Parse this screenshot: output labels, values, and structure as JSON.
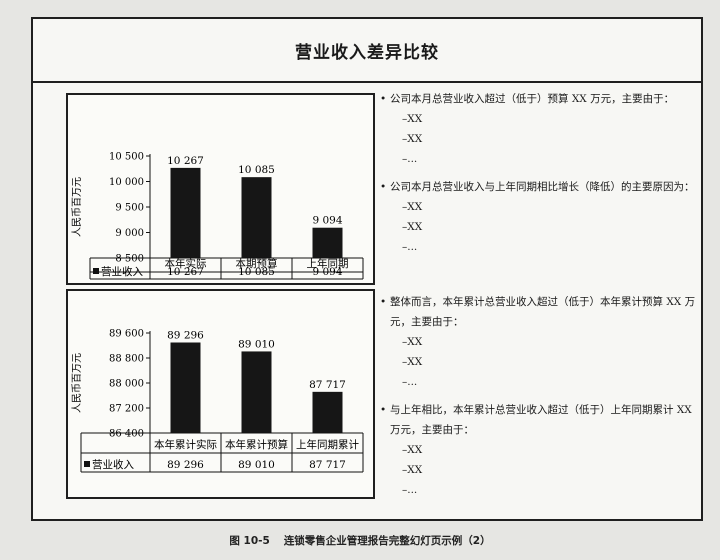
{
  "slide": {
    "title": "营业收入差异比较"
  },
  "charts": [
    {
      "ylabel": "人民币百万元",
      "ylim": [
        8500,
        10500
      ],
      "ticks": [
        "10 500",
        "10 000",
        "9 500",
        "9 000",
        "8 500"
      ],
      "tick_values": [
        10500,
        10000,
        9500,
        9000,
        8500
      ],
      "categories": [
        "本年实际",
        "本期预算",
        "上年同期"
      ],
      "series_label": "营业收入",
      "values": [
        10267,
        10085,
        9094
      ],
      "value_labels": [
        "10 267",
        "10 085",
        "9 094"
      ]
    },
    {
      "ylabel": "人民币百万元",
      "ylim": [
        86400,
        89600
      ],
      "ticks": [
        "89 600",
        "88 800",
        "88 000",
        "87 200",
        "86 400"
      ],
      "tick_values": [
        89600,
        88800,
        88000,
        87200,
        86400
      ],
      "categories": [
        "本年累计实际",
        "本年累计预算",
        "上年同期累计"
      ],
      "series_label": "营业收入",
      "values": [
        89296,
        89010,
        87717
      ],
      "value_labels": [
        "89 296",
        "89 010",
        "87 717"
      ]
    }
  ],
  "chart_data": [
    {
      "type": "bar",
      "title": "",
      "xlabel": "",
      "ylabel": "人民币百万元",
      "categories": [
        "本年实际",
        "本期预算",
        "上年同期"
      ],
      "series": [
        {
          "name": "营业收入",
          "values": [
            10267,
            10085,
            9094
          ]
        }
      ],
      "ylim": [
        8500,
        10500
      ],
      "grid": false,
      "legend": "in data table"
    },
    {
      "type": "bar",
      "title": "",
      "xlabel": "",
      "ylabel": "人民币百万元",
      "categories": [
        "本年累计实际",
        "本年累计预算",
        "上年同期累计"
      ],
      "series": [
        {
          "name": "营业收入",
          "values": [
            89296,
            89010,
            87717
          ]
        }
      ],
      "ylim": [
        86400,
        89600
      ],
      "grid": false,
      "legend": "in data table"
    }
  ],
  "bullets_top": [
    {
      "text": "公司本月总营业收入超过（低于）预算 XX 万元，主要由于：",
      "subs": [
        "–XX",
        "–XX",
        "–..."
      ]
    },
    {
      "text": "公司本月总营业收入与上年同期相比增长（降低）的主要原因为：",
      "subs": [
        "–XX",
        "–XX",
        "–..."
      ]
    }
  ],
  "bullets_bottom": [
    {
      "text": "整体而言，本年累计总营业收入超过（低于）本年累计预算 XX 万元，主要由于：",
      "subs": [
        "–XX",
        "–XX",
        "–..."
      ]
    },
    {
      "text": "与上年相比，本年累计总营业收入超过（低于）上年同期累计 XX 万元，主要由于：",
      "subs": [
        "–XX",
        "–XX",
        "–..."
      ]
    }
  ],
  "bullet_symbol": "•",
  "caption": {
    "fig": "图 10-5",
    "text": "连锁零售企业管理报告完整幻灯页示例（2）"
  }
}
